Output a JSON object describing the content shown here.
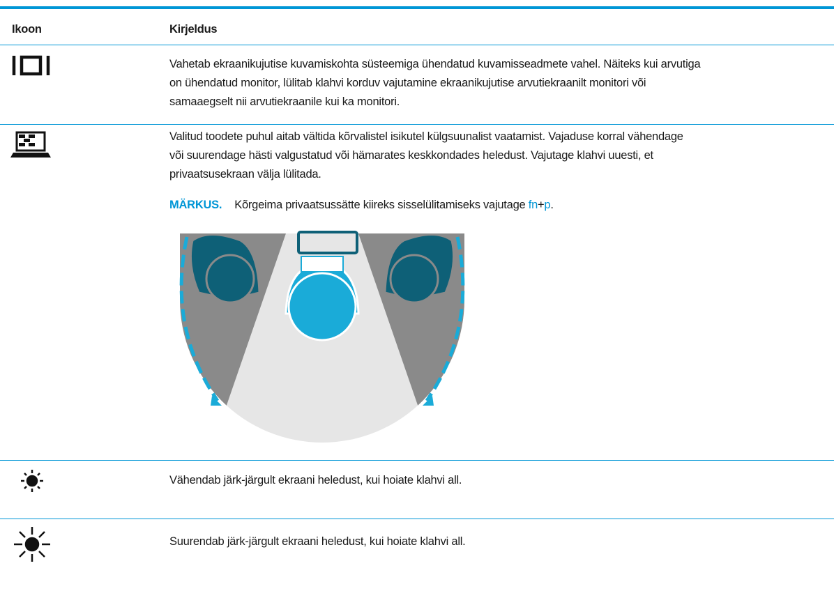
{
  "table": {
    "header": [
      "Ikoon",
      "Kirjeldus"
    ],
    "rows": [
      {
        "description": [
          "Vahetab ekraanikujutise kuvamiskohta süsteemiga ühendatud kuvamisseadmete vahel. Näiteks kui arvutiga",
          "on ühendatud monitor, lülitab klahvi korduv vajutamine ekraanikujutise arvutiekraanilt monitori või",
          "samaaegselt nii arvutiekraanile kui ka monitori."
        ]
      },
      {
        "description": [
          "Valitud toodete puhul aitab vältida kõrvalistel isikutel külgsuunalist vaatamist. Vajaduse korral vähendage",
          "või suurendage hästi valgustatud või hämarates keskkondades heledust. Vajutage klahvi uuesti, et",
          "privaatsusekraan välja lülitada."
        ],
        "note": {
          "label": "MÄRKUS.",
          "text": "Kõrgeima privaatsussätte kiireks sisselülitamiseks vajutage ",
          "key1": "fn",
          "plus": "+",
          "key2": "p",
          "end": "."
        }
      },
      {
        "description": [
          "Vähendab järk-järgult ekraani heledust, kui hoiate klahvi all."
        ]
      },
      {
        "description": [
          "Suurendab järk-järgult ekraani heledust, kui hoiate klahvi all."
        ]
      }
    ]
  }
}
